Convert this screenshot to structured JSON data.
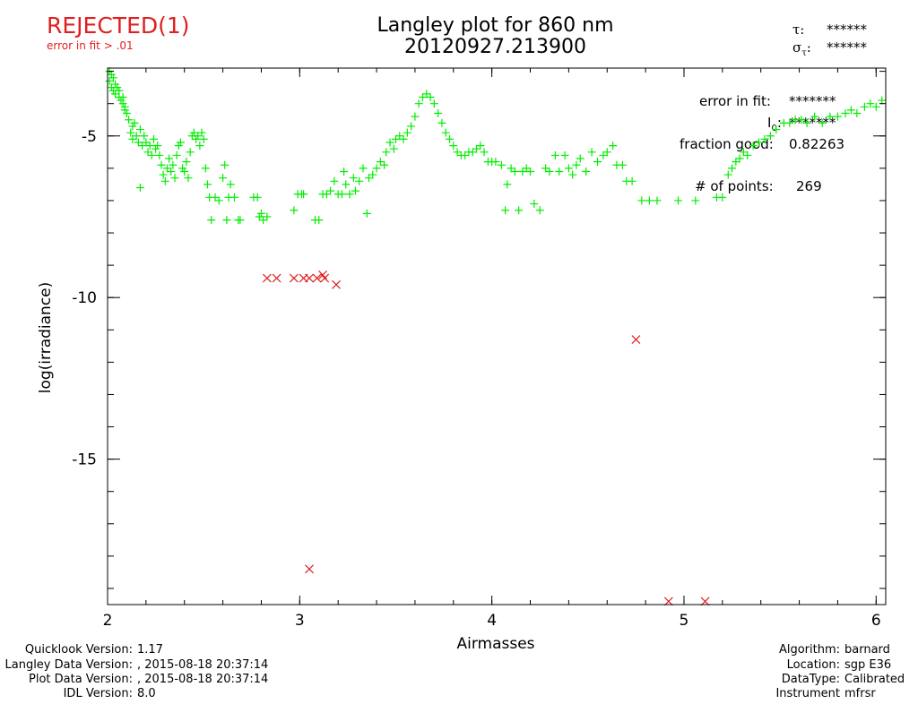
{
  "status": {
    "label": "REJECTED(1)",
    "reason": "error in fit > .01",
    "color": "#e02020"
  },
  "title": {
    "line1": "Langley plot for 860 nm",
    "line2": "20120927.213900"
  },
  "tau": {
    "tau_symbol": "τ:",
    "tau_value": "******",
    "sigma_symbol": "σ",
    "sigma_subscript": "τ",
    "sigma_colon": ":",
    "sigma_value": "******"
  },
  "fit_stats": {
    "error_label": "error in fit:",
    "error_value": "*******",
    "i0_label": "I",
    "i0_subscript": "0",
    "i0_colon": ":",
    "i0_value": "*******",
    "fraction_label": "fraction good:",
    "fraction_value": "0.82263",
    "points_label": "# of points:",
    "points_value": "269"
  },
  "footer_left": {
    "quicklook_label": "Quicklook Version:",
    "quicklook_value": "1.17",
    "langley_label": "Langley Data Version:",
    "langley_value": ", 2015-08-18 20:37:14",
    "plot_label": "Plot Data Version:",
    "plot_value": ", 2015-08-18 20:37:14",
    "idl_label": "IDL Version:",
    "idl_value": "8.0"
  },
  "footer_right": {
    "algorithm_label": "Algorithm:",
    "algorithm_value": "barnard",
    "location_label": "Location:",
    "location_value": "sgp E36",
    "datatype_label": "DataType:",
    "datatype_value": "Calibrated",
    "instrument_label": "Instrument",
    "instrument_value": "mfrsr"
  },
  "chart_data": {
    "type": "scatter",
    "xlabel": "Airmasses",
    "ylabel": "log(irradiance)",
    "xlim": [
      2,
      6.05
    ],
    "ylim": [
      -19.5,
      -2.9
    ],
    "x_ticks": [
      2,
      3,
      4,
      5,
      6
    ],
    "x_tick_labels": [
      "2",
      "3",
      "4",
      "5",
      "6"
    ],
    "y_ticks": [
      -5,
      -10,
      -15
    ],
    "y_tick_labels": [
      "-5",
      "-10",
      "-15"
    ],
    "grid": false,
    "colors": {
      "good": "#00ee00",
      "rejected": "#e02020"
    },
    "series": [
      {
        "marker": "plus",
        "points": [
          [
            2.01,
            -3.0
          ],
          [
            2.01,
            -3.3
          ],
          [
            2.02,
            -3.1
          ],
          [
            2.02,
            -3.5
          ],
          [
            2.03,
            -3.2
          ],
          [
            2.03,
            -3.6
          ],
          [
            2.04,
            -3.4
          ],
          [
            2.04,
            -3.7
          ],
          [
            2.05,
            -3.5
          ],
          [
            2.06,
            -3.6
          ],
          [
            2.06,
            -3.8
          ],
          [
            2.07,
            -3.9
          ],
          [
            2.08,
            -4.0
          ],
          [
            2.08,
            -3.8
          ],
          [
            2.09,
            -4.1
          ],
          [
            2.09,
            -4.2
          ],
          [
            2.1,
            -4.3
          ],
          [
            2.11,
            -4.5
          ],
          [
            2.12,
            -4.9
          ],
          [
            2.13,
            -4.7
          ],
          [
            2.13,
            -5.1
          ],
          [
            2.14,
            -4.6
          ],
          [
            2.15,
            -5.0
          ],
          [
            2.16,
            -5.2
          ],
          [
            2.17,
            -4.8
          ],
          [
            2.17,
            -6.6
          ],
          [
            2.18,
            -5.3
          ],
          [
            2.19,
            -5.0
          ],
          [
            2.2,
            -5.2
          ],
          [
            2.21,
            -5.5
          ],
          [
            2.22,
            -5.3
          ],
          [
            2.23,
            -5.6
          ],
          [
            2.24,
            -5.1
          ],
          [
            2.25,
            -5.4
          ],
          [
            2.26,
            -5.3
          ],
          [
            2.27,
            -5.6
          ],
          [
            2.28,
            -5.9
          ],
          [
            2.29,
            -6.2
          ],
          [
            2.3,
            -6.4
          ],
          [
            2.31,
            -6.0
          ],
          [
            2.32,
            -5.7
          ],
          [
            2.33,
            -6.1
          ],
          [
            2.34,
            -5.9
          ],
          [
            2.35,
            -6.3
          ],
          [
            2.36,
            -5.6
          ],
          [
            2.37,
            -5.3
          ],
          [
            2.38,
            -5.2
          ],
          [
            2.39,
            -6.0
          ],
          [
            2.4,
            -6.1
          ],
          [
            2.41,
            -5.8
          ],
          [
            2.42,
            -6.3
          ],
          [
            2.43,
            -5.5
          ],
          [
            2.44,
            -5.0
          ],
          [
            2.45,
            -4.9
          ],
          [
            2.46,
            -5.1
          ],
          [
            2.47,
            -5.0
          ],
          [
            2.48,
            -5.3
          ],
          [
            2.49,
            -4.9
          ],
          [
            2.5,
            -5.1
          ],
          [
            2.51,
            -6.0
          ],
          [
            2.52,
            -6.5
          ],
          [
            2.53,
            -6.9
          ],
          [
            2.54,
            -7.6
          ],
          [
            2.56,
            -6.9
          ],
          [
            2.58,
            -7.0
          ],
          [
            2.6,
            -6.3
          ],
          [
            2.61,
            -5.9
          ],
          [
            2.62,
            -7.6
          ],
          [
            2.63,
            -6.9
          ],
          [
            2.64,
            -6.5
          ],
          [
            2.66,
            -6.9
          ],
          [
            2.68,
            -7.6
          ],
          [
            2.69,
            -7.6
          ],
          [
            2.76,
            -6.9
          ],
          [
            2.78,
            -6.9
          ],
          [
            2.79,
            -7.5
          ],
          [
            2.8,
            -7.4
          ],
          [
            2.81,
            -7.6
          ],
          [
            2.83,
            -7.5
          ],
          [
            2.97,
            -7.3
          ],
          [
            2.99,
            -6.8
          ],
          [
            3.01,
            -6.8
          ],
          [
            3.02,
            -6.8
          ],
          [
            3.08,
            -7.6
          ],
          [
            3.1,
            -7.6
          ],
          [
            3.12,
            -6.8
          ],
          [
            3.14,
            -6.8
          ],
          [
            3.16,
            -6.7
          ],
          [
            3.18,
            -6.4
          ],
          [
            3.2,
            -6.8
          ],
          [
            3.22,
            -6.8
          ],
          [
            3.23,
            -6.1
          ],
          [
            3.24,
            -6.5
          ],
          [
            3.26,
            -6.8
          ],
          [
            3.28,
            -6.3
          ],
          [
            3.29,
            -6.7
          ],
          [
            3.31,
            -6.4
          ],
          [
            3.33,
            -6.0
          ],
          [
            3.35,
            -7.4
          ],
          [
            3.36,
            -6.3
          ],
          [
            3.38,
            -6.2
          ],
          [
            3.4,
            -6.0
          ],
          [
            3.42,
            -5.8
          ],
          [
            3.44,
            -5.9
          ],
          [
            3.45,
            -5.5
          ],
          [
            3.47,
            -5.2
          ],
          [
            3.49,
            -5.4
          ],
          [
            3.5,
            -5.1
          ],
          [
            3.52,
            -5.0
          ],
          [
            3.54,
            -5.1
          ],
          [
            3.56,
            -4.9
          ],
          [
            3.58,
            -4.7
          ],
          [
            3.6,
            -4.4
          ],
          [
            3.62,
            -4.0
          ],
          [
            3.64,
            -3.8
          ],
          [
            3.66,
            -3.7
          ],
          [
            3.68,
            -3.8
          ],
          [
            3.7,
            -4.0
          ],
          [
            3.72,
            -4.3
          ],
          [
            3.74,
            -4.6
          ],
          [
            3.76,
            -4.9
          ],
          [
            3.78,
            -5.1
          ],
          [
            3.8,
            -5.3
          ],
          [
            3.82,
            -5.5
          ],
          [
            3.84,
            -5.6
          ],
          [
            3.86,
            -5.6
          ],
          [
            3.88,
            -5.5
          ],
          [
            3.9,
            -5.5
          ],
          [
            3.92,
            -5.4
          ],
          [
            3.94,
            -5.3
          ],
          [
            3.96,
            -5.5
          ],
          [
            3.98,
            -5.8
          ],
          [
            4.0,
            -5.8
          ],
          [
            4.02,
            -5.8
          ],
          [
            4.05,
            -5.9
          ],
          [
            4.07,
            -7.3
          ],
          [
            4.08,
            -6.5
          ],
          [
            4.1,
            -6.0
          ],
          [
            4.12,
            -6.1
          ],
          [
            4.14,
            -7.3
          ],
          [
            4.16,
            -6.1
          ],
          [
            4.18,
            -6.0
          ],
          [
            4.2,
            -6.1
          ],
          [
            4.22,
            -7.1
          ],
          [
            4.25,
            -7.3
          ],
          [
            4.28,
            -6.0
          ],
          [
            4.3,
            -6.1
          ],
          [
            4.33,
            -5.6
          ],
          [
            4.35,
            -6.1
          ],
          [
            4.38,
            -5.6
          ],
          [
            4.4,
            -6.0
          ],
          [
            4.42,
            -6.2
          ],
          [
            4.44,
            -5.9
          ],
          [
            4.46,
            -5.7
          ],
          [
            4.49,
            -6.1
          ],
          [
            4.52,
            -5.5
          ],
          [
            4.55,
            -5.8
          ],
          [
            4.58,
            -5.6
          ],
          [
            4.6,
            -5.5
          ],
          [
            4.63,
            -5.3
          ],
          [
            4.65,
            -5.9
          ],
          [
            4.68,
            -5.9
          ],
          [
            4.7,
            -6.4
          ],
          [
            4.73,
            -6.4
          ],
          [
            4.78,
            -7.0
          ],
          [
            4.82,
            -7.0
          ],
          [
            4.86,
            -7.0
          ],
          [
            4.97,
            -7.0
          ],
          [
            5.06,
            -7.0
          ],
          [
            5.17,
            -6.9
          ],
          [
            5.2,
            -6.9
          ],
          [
            5.23,
            -6.2
          ],
          [
            5.25,
            -6.0
          ],
          [
            5.27,
            -5.8
          ],
          [
            5.29,
            -5.7
          ],
          [
            5.31,
            -5.5
          ],
          [
            5.33,
            -5.6
          ],
          [
            5.36,
            -5.3
          ],
          [
            5.39,
            -5.2
          ],
          [
            5.42,
            -5.1
          ],
          [
            5.45,
            -5.0
          ],
          [
            5.48,
            -4.8
          ],
          [
            5.52,
            -4.6
          ],
          [
            5.55,
            -4.6
          ],
          [
            5.58,
            -4.5
          ],
          [
            5.61,
            -4.5
          ],
          [
            5.64,
            -4.6
          ],
          [
            5.68,
            -4.4
          ],
          [
            5.72,
            -4.6
          ],
          [
            5.76,
            -4.4
          ],
          [
            5.8,
            -4.4
          ],
          [
            5.84,
            -4.3
          ],
          [
            5.87,
            -4.2
          ],
          [
            5.9,
            -4.3
          ],
          [
            5.94,
            -4.1
          ],
          [
            5.97,
            -4.0
          ],
          [
            6.0,
            -4.1
          ],
          [
            6.03,
            -3.9
          ]
        ]
      },
      {
        "marker": "x",
        "points": [
          [
            2.83,
            -9.4
          ],
          [
            2.88,
            -9.4
          ],
          [
            2.97,
            -9.4
          ],
          [
            3.02,
            -9.4
          ],
          [
            3.05,
            -9.4
          ],
          [
            3.09,
            -9.4
          ],
          [
            3.12,
            -9.3
          ],
          [
            3.13,
            -9.4
          ],
          [
            3.19,
            -9.6
          ],
          [
            3.05,
            -18.4
          ],
          [
            4.75,
            -11.3
          ],
          [
            4.92,
            -19.4
          ],
          [
            5.11,
            -19.4
          ]
        ]
      }
    ]
  }
}
